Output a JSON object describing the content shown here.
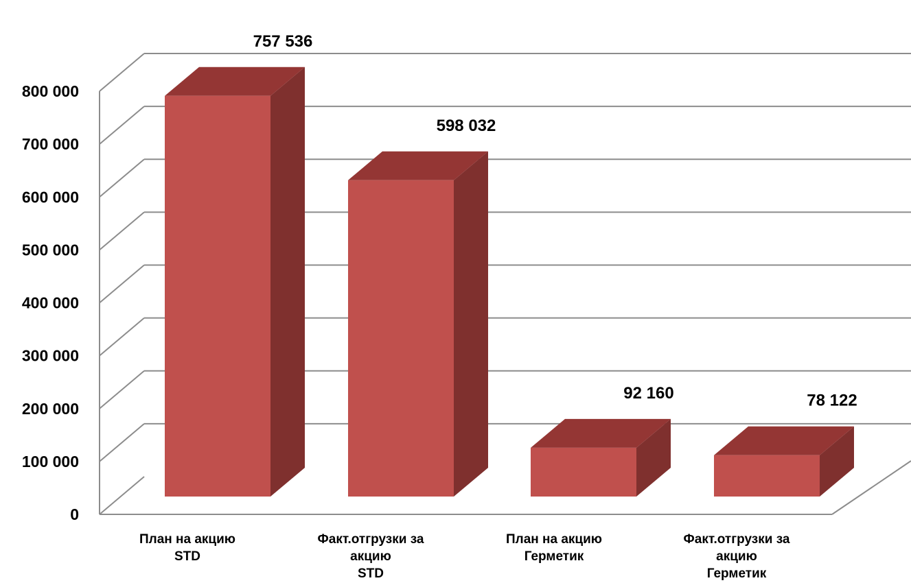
{
  "chart_data": {
    "type": "bar",
    "style": "3d-column",
    "categories": [
      [
        "План на акцию",
        "STD"
      ],
      [
        "Факт.отгрузки за",
        "акцию",
        "STD"
      ],
      [
        "План на акцию",
        "Герметик"
      ],
      [
        "Факт.отгрузки за",
        "акцию",
        "Герметик"
      ]
    ],
    "values": [
      757536,
      598032,
      92160,
      78122
    ],
    "data_labels": [
      "757 536",
      "598 032",
      "92 160",
      "78 122"
    ],
    "ylim": [
      0,
      800000
    ],
    "y_ticks": [
      0,
      100000,
      200000,
      300000,
      400000,
      500000,
      600000,
      700000,
      800000
    ],
    "y_tick_labels": [
      "0",
      "100 000",
      "200 000",
      "300 000",
      "400 000",
      "500 000",
      "600 000",
      "700 000",
      "800 000"
    ],
    "grid": true,
    "legend": "none",
    "title": "",
    "xlabel": "",
    "ylabel": "",
    "colors": {
      "bar_front": "#c0504d",
      "bar_top": "#943634",
      "bar_side": "#7f302e",
      "grid": "#8c8c8c"
    }
  }
}
